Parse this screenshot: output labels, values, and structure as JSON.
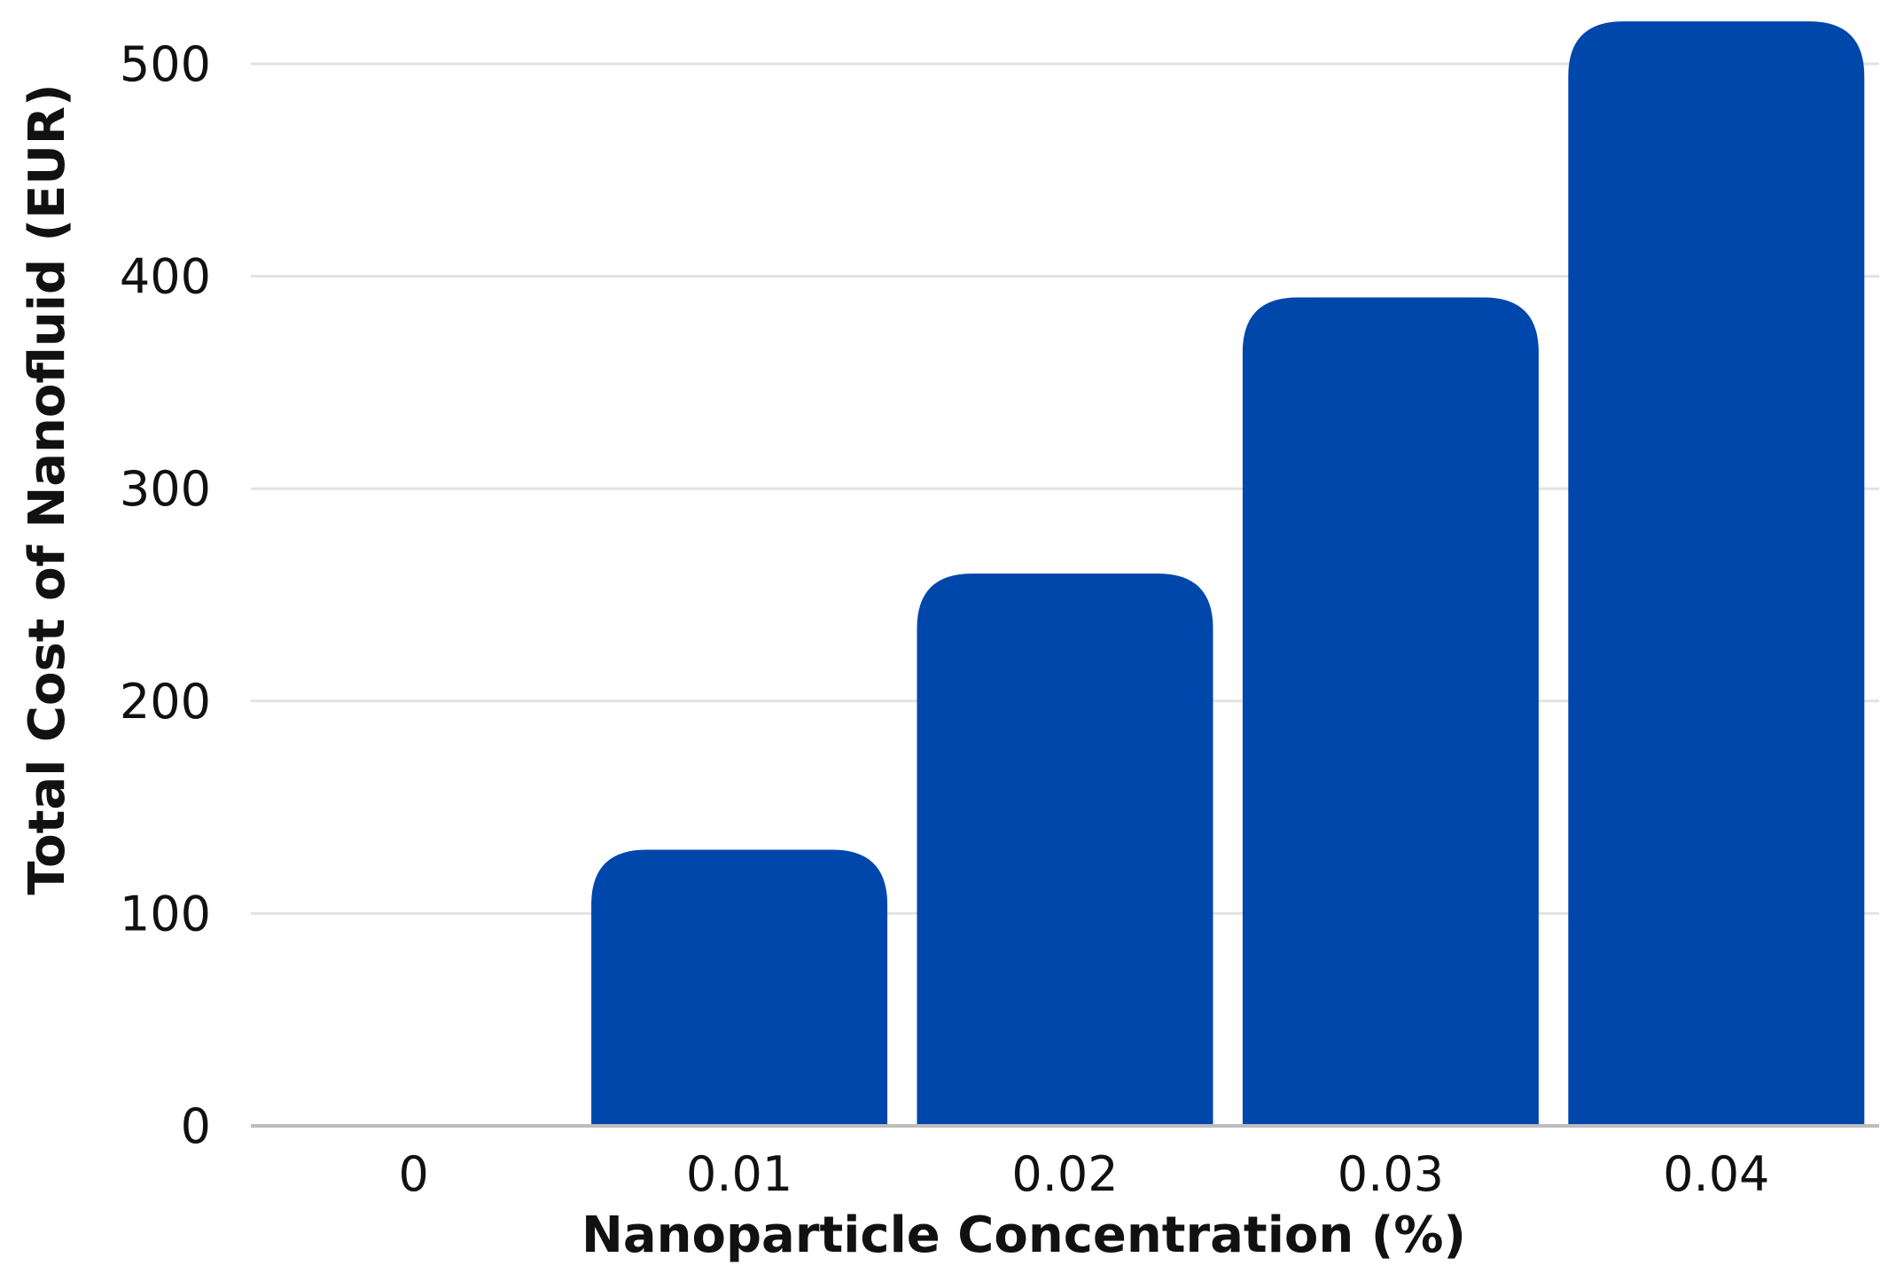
{
  "chart_data": {
    "type": "bar",
    "categories": [
      "0",
      "0.01",
      "0.02",
      "0.03",
      "0.04"
    ],
    "values": [
      0,
      130,
      260,
      390,
      520
    ],
    "xlabel": "Nanoparticle Concentration (%)",
    "ylabel": "Total Cost of Nanofluid (EUR)",
    "ylim": [
      0,
      500
    ],
    "yticks": [
      0,
      100,
      200,
      300,
      400,
      500
    ],
    "grid": true,
    "legend": "none",
    "bar_color": "#0047AB"
  }
}
